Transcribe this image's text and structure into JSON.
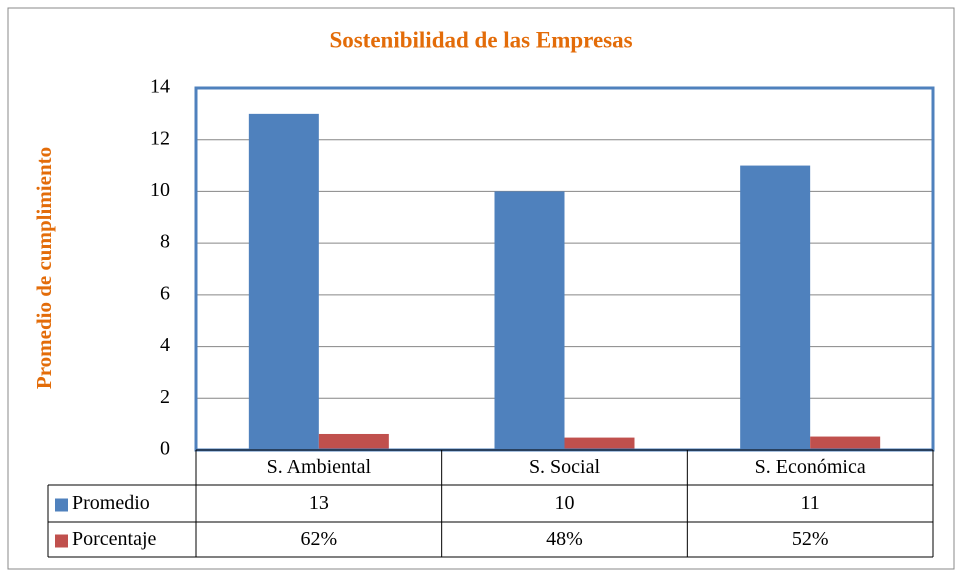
{
  "chart_data": {
    "type": "bar",
    "title": "Sostenibilidad de las Empresas",
    "y_label": "Promedio de cumplimiento",
    "categories": [
      "S. Ambiental",
      "S. Social",
      "S. Económica"
    ],
    "series": [
      {
        "name": "Promedio",
        "color": "#4F81BD",
        "values": [
          13,
          10,
          11
        ]
      },
      {
        "name": "Porcentaje",
        "color": "#C0504D",
        "values": [
          0.62,
          0.48,
          0.52
        ],
        "value_labels": [
          "62%",
          "48%",
          "52%"
        ]
      }
    ],
    "ylim": [
      0,
      14
    ],
    "yticks": [
      0,
      2,
      4,
      6,
      8,
      10,
      12,
      14
    ],
    "grid": true
  }
}
